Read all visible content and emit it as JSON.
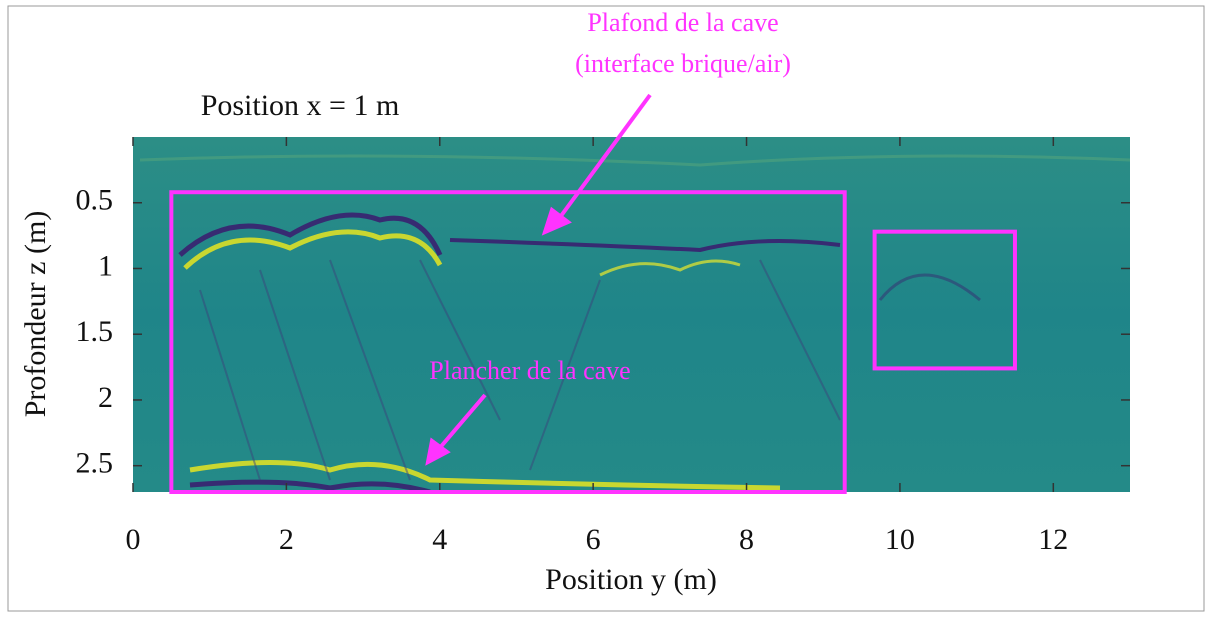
{
  "chart_data": {
    "type": "radargram",
    "title": "Position x = 1 m",
    "x_label": "Position y (m)",
    "y_label": "Profondeur z (m)",
    "xlim": [
      0,
      13
    ],
    "xticks": [
      0,
      2,
      4,
      6,
      8,
      10,
      12
    ],
    "ylim": [
      0,
      2.7
    ],
    "yticks": [
      0.5,
      1,
      1.5,
      2,
      2.5
    ],
    "y_inverted": true,
    "annotations": [
      "Plafond de la cave",
      "(interface brique/air)",
      "Plancher de la cave"
    ],
    "annotation_color": "#ff33ff",
    "regions": [
      {
        "x": [
          0.5,
          9.28
        ],
        "y": [
          0.42,
          2.7
        ]
      },
      {
        "x": [
          9.67,
          11.5
        ],
        "y": [
          0.72,
          1.76
        ]
      }
    ]
  }
}
